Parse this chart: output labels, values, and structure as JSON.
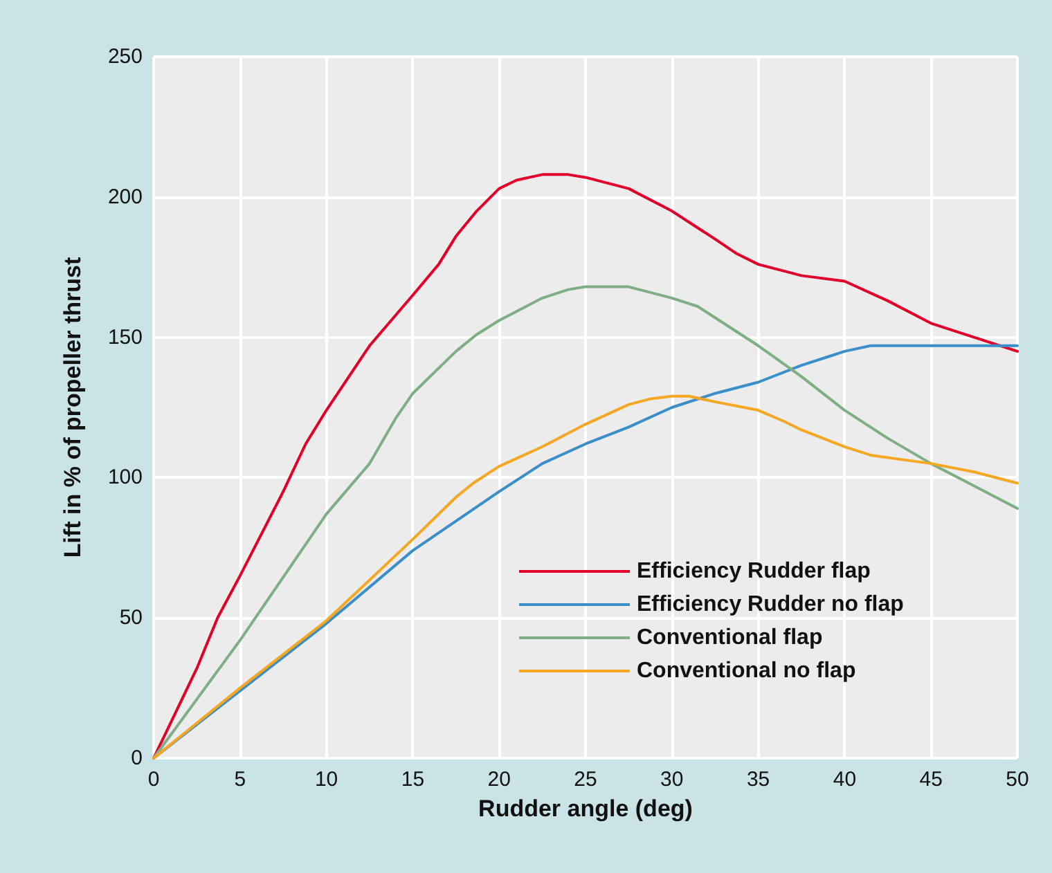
{
  "chart_data": {
    "type": "line",
    "xlabel": "Rudder angle (deg)",
    "ylabel": "Lift in % of propeller thrust",
    "xlim": [
      0,
      50
    ],
    "xticks": [
      0,
      5,
      10,
      15,
      20,
      25,
      30,
      35,
      40,
      45,
      50
    ],
    "ylim": [
      0,
      250
    ],
    "yticks": [
      0,
      50,
      100,
      150,
      200,
      250
    ],
    "grid": true,
    "legend": "right",
    "marker": "none",
    "line_style": "solid",
    "series": [
      {
        "name": "Efficiency Rudder flap",
        "color": "#e0002a",
        "x": [
          0,
          2.5,
          3.7,
          5,
          7.5,
          8.8,
          10,
          12.5,
          15,
          16.5,
          17.5,
          18.7,
          20,
          21,
          22.5,
          24,
          25,
          27.5,
          30,
          32.5,
          33.7,
          35,
          37.5,
          40,
          42.5,
          45,
          47.5,
          50
        ],
        "values": [
          0,
          32,
          50,
          65,
          95,
          112,
          124,
          147,
          165,
          176,
          186,
          195,
          203,
          206,
          208,
          208,
          207,
          203,
          195,
          185,
          180,
          176,
          172,
          170,
          163,
          155,
          150,
          145
        ]
      },
      {
        "name": "Efficiency Rudder no flap",
        "color": "#3a8fc8",
        "x": [
          0,
          5,
          10,
          15,
          20,
          22.5,
          25,
          27.5,
          30,
          32.5,
          35,
          37.5,
          39,
          40,
          41.5,
          45,
          50
        ],
        "values": [
          0,
          24,
          48,
          74,
          95,
          105,
          112,
          118,
          125,
          130,
          134,
          140,
          143,
          145,
          147,
          147,
          147
        ]
      },
      {
        "name": "Conventional flap",
        "color": "#7fae85",
        "x": [
          0,
          5,
          10,
          12.5,
          14,
          15,
          17.5,
          18.7,
          20,
          22.5,
          24,
          25,
          27.5,
          30,
          31.5,
          32.5,
          35,
          37.5,
          40,
          42.5,
          45,
          47.5,
          50
        ],
        "values": [
          0,
          42,
          87,
          105,
          121,
          130,
          145,
          151,
          156,
          164,
          167,
          168,
          168,
          164,
          161,
          157,
          147,
          136,
          124,
          114,
          105,
          97,
          89
        ]
      },
      {
        "name": "Conventional no flap",
        "color": "#f5a623",
        "x": [
          0,
          5,
          10,
          15,
          17.5,
          18.5,
          20,
          22.5,
          25,
          27.5,
          28.7,
          30,
          31,
          32.5,
          35,
          36.5,
          37.5,
          40,
          41.5,
          45,
          47.5,
          50
        ],
        "values": [
          0,
          25,
          49,
          78,
          93,
          98,
          104,
          111,
          119,
          126,
          128,
          129,
          129,
          127,
          124,
          120,
          117,
          111,
          108,
          105,
          102,
          98
        ]
      }
    ]
  }
}
